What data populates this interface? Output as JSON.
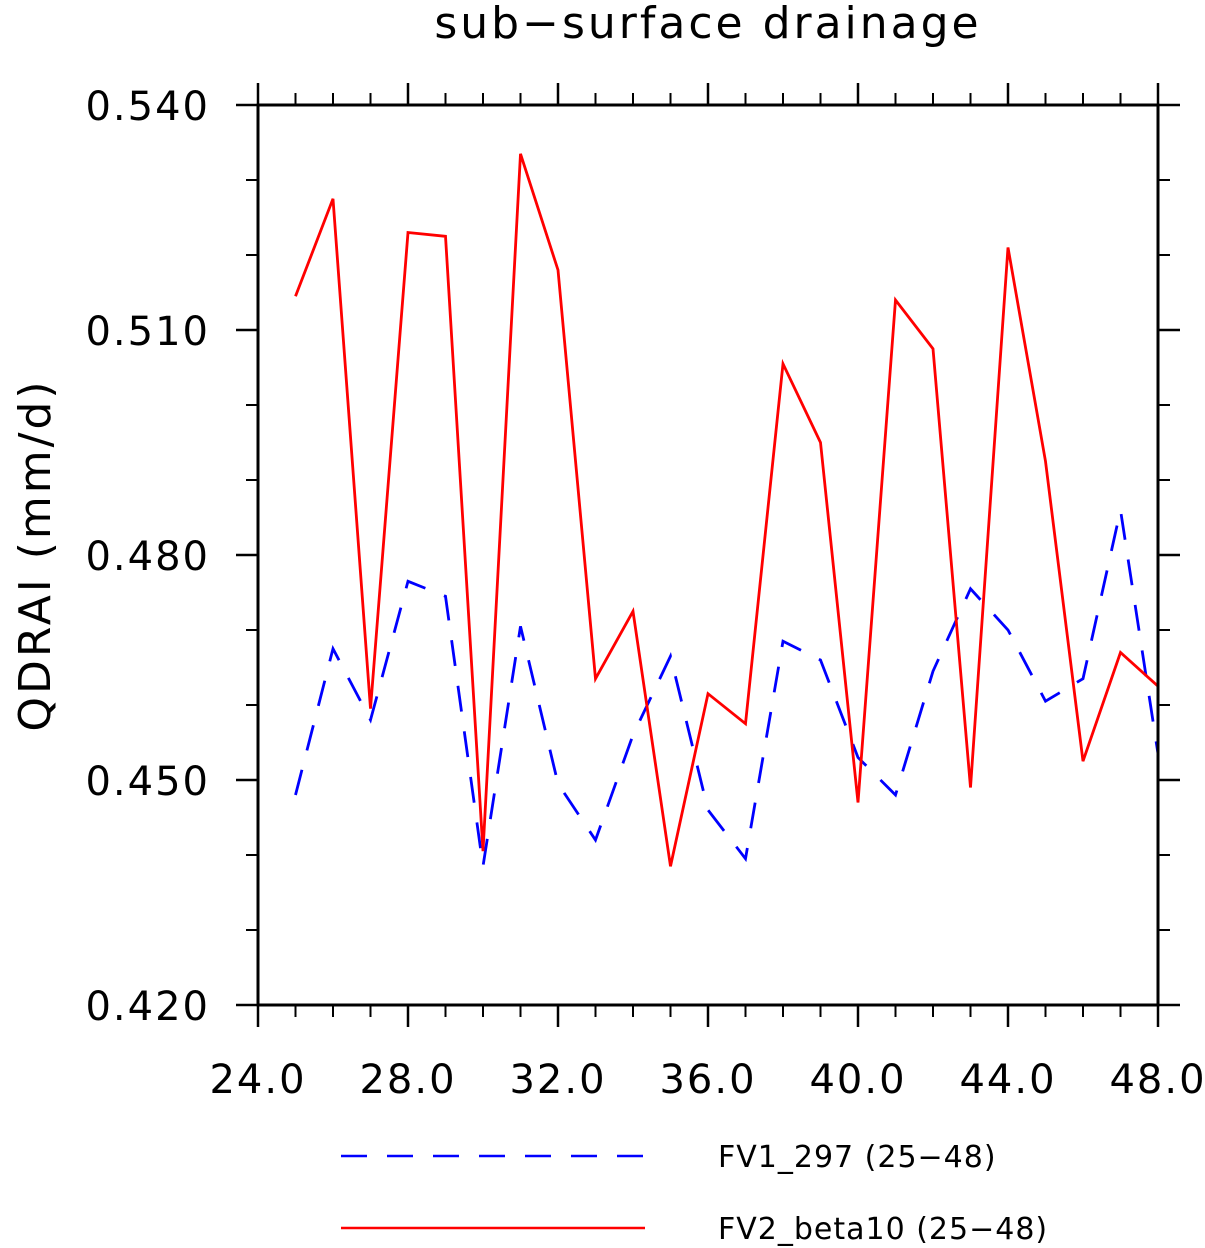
{
  "chart_data": {
    "type": "line",
    "title": "sub−surface drainage",
    "xlabel": "",
    "ylabel": "QDRAI   (mm/d)",
    "xlim": [
      24.0,
      48.0
    ],
    "ylim": [
      0.42,
      0.54
    ],
    "x_ticks": [
      "24.0",
      "28.0",
      "32.0",
      "36.0",
      "40.0",
      "44.0",
      "48.0"
    ],
    "y_ticks": [
      "0.420",
      "0.450",
      "0.480",
      "0.510",
      "0.540"
    ],
    "x_minor_step": 1,
    "y_minor_step": 0.01,
    "grid": false,
    "legend_position": "bottom",
    "x": [
      25,
      26,
      27,
      28,
      29,
      30,
      31,
      32,
      33,
      34,
      35,
      36,
      37,
      38,
      39,
      40,
      41,
      42,
      43,
      44,
      45,
      46,
      47,
      48
    ],
    "series": [
      {
        "name": "FV1_297 (25−48)",
        "color": "#0000ff",
        "style": "dashed",
        "values": [
          0.448,
          0.4675,
          0.458,
          0.4765,
          0.4745,
          0.4385,
          0.4705,
          0.4495,
          0.442,
          0.456,
          0.4665,
          0.446,
          0.4395,
          0.4685,
          0.466,
          0.453,
          0.448,
          0.4645,
          0.4755,
          0.47,
          0.4605,
          0.4635,
          0.486,
          0.4535
        ]
      },
      {
        "name": "FV2_beta10 (25−48)",
        "color": "#ff0000",
        "style": "solid",
        "values": [
          0.5145,
          0.5275,
          0.4595,
          0.523,
          0.5225,
          0.4405,
          0.5335,
          0.518,
          0.4635,
          0.4725,
          0.4385,
          0.4615,
          0.4575,
          0.5055,
          0.495,
          0.447,
          0.514,
          0.5075,
          0.449,
          0.521,
          0.4925,
          0.4525,
          0.467,
          0.4625
        ]
      }
    ]
  }
}
